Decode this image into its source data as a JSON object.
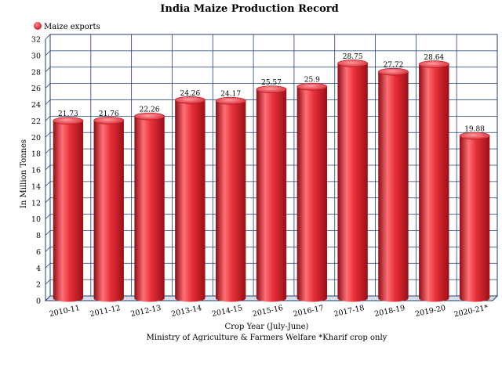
{
  "chart_data": {
    "type": "bar",
    "title": "India Maize Production Record",
    "legend": {
      "label": "Maize exports",
      "color": "#e8303a",
      "placement": "top-left"
    },
    "xlabel": "Crop Year (July-June)",
    "ylabel": "In Million Tonnes",
    "source": "Ministry of Agriculture & Farmers Welfare *Kharif crop only",
    "ylim": [
      0,
      32
    ],
    "ytick_step": 2,
    "grid": true,
    "categories": [
      "2010-11",
      "2011-12",
      "2012-13",
      "2013-14",
      "2014-15",
      "2015-16",
      "2016-17",
      "2017-18",
      "2018-19",
      "2019-20",
      "2020-21*"
    ],
    "values": [
      21.73,
      21.76,
      22.26,
      24.26,
      24.17,
      25.57,
      25.9,
      28.75,
      27.72,
      28.64,
      19.88
    ],
    "value_labels": [
      "21.73",
      "21.76",
      "22.26",
      "24.26",
      "24.17",
      "25.57",
      "25.9",
      "28.75",
      "27.72",
      "28.64",
      "19.88"
    ],
    "colors": {
      "bar": "#e8303a",
      "bar_dark": "#8e0c12",
      "bar_light": "#ff8a8f",
      "grid": "#1f3f73"
    }
  }
}
